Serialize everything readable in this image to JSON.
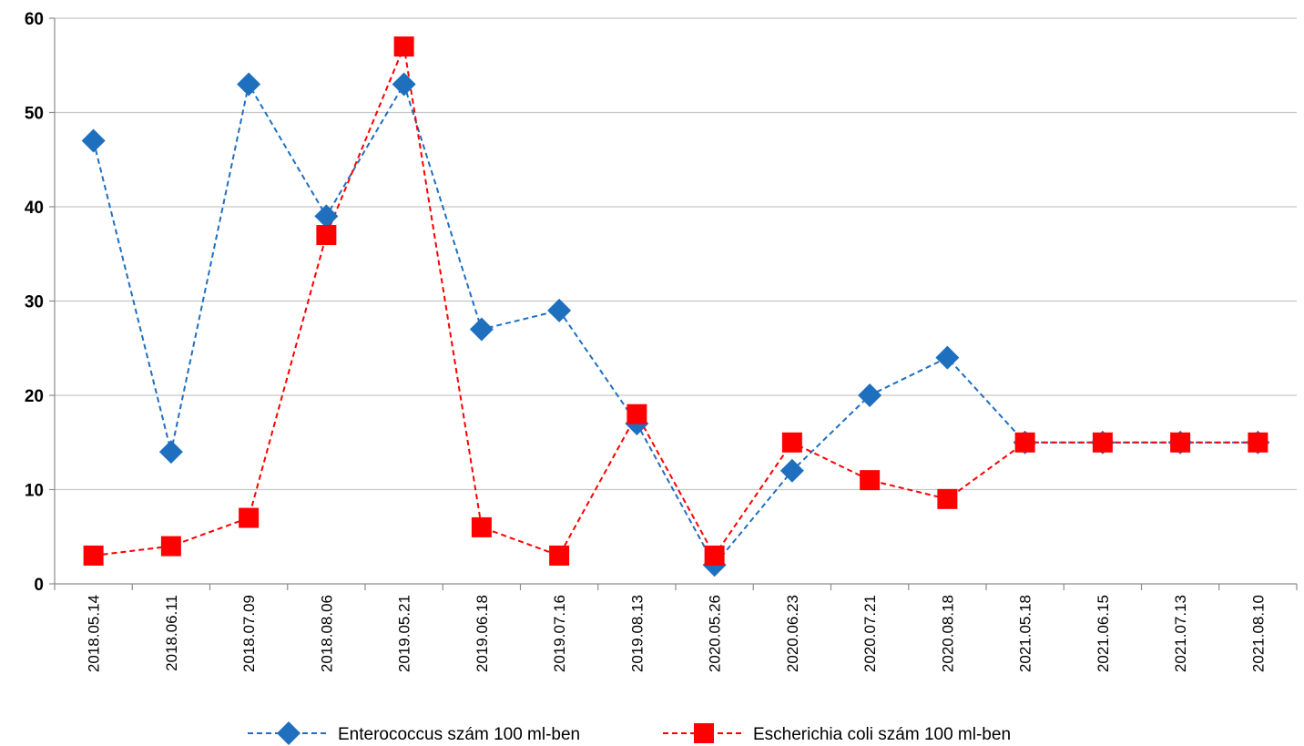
{
  "chart_data": {
    "type": "line",
    "title": "",
    "xlabel": "",
    "ylabel": "",
    "ylim": [
      0,
      60
    ],
    "yticks": [
      0,
      10,
      20,
      30,
      40,
      50,
      60
    ],
    "grid": true,
    "legend_position": "bottom",
    "categories": [
      "2018.05.14",
      "2018.06.11",
      "2018.07.09",
      "2018.08.06",
      "2019.05.21",
      "2019.06.18",
      "2019.07.16",
      "2019.08.13",
      "2020.05.26",
      "2020.06.23",
      "2020.07.21",
      "2020.08.18",
      "2021.05.18",
      "2021.06.15",
      "2021.07.13",
      "2021.08.10"
    ],
    "series": [
      {
        "name": "Enterococcus szám 100 ml-ben",
        "color": "#1F6FBF",
        "marker": "diamond",
        "line_style": "dashed",
        "values": [
          47,
          14,
          53,
          39,
          53,
          27,
          29,
          17,
          2,
          12,
          20,
          24,
          15,
          15,
          15,
          15
        ]
      },
      {
        "name": "Escherichia coli szám 100 ml-ben",
        "color": "#FF0000",
        "marker": "square",
        "line_style": "dashed",
        "values": [
          3,
          4,
          7,
          37,
          57,
          6,
          3,
          18,
          3,
          15,
          11,
          9,
          15,
          15,
          15,
          15
        ]
      }
    ]
  }
}
